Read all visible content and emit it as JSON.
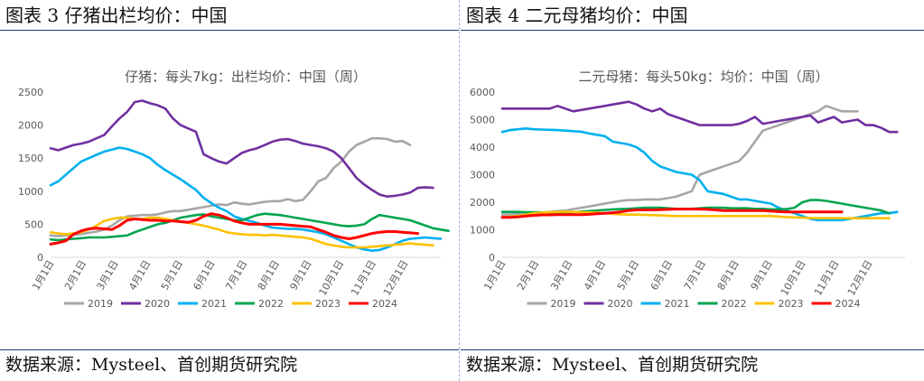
{
  "panels": [
    {
      "figure_title": "图表 3 仔猪出栏均价：中国",
      "source": "数据来源：Mysteel、首创期货研究院",
      "chart_data": {
        "type": "line",
        "title": "仔猪：每头7kg：出栏均价：中国（周）",
        "xlabel": "",
        "ylabel": "",
        "x_ticks": [
          "1月1日",
          "2月1日",
          "3月1日",
          "4月1日",
          "5月1日",
          "6月1日",
          "7月1日",
          "8月1日",
          "9月1日",
          "10月1日",
          "11月1日",
          "12月1日"
        ],
        "ylim": [
          0,
          2500
        ],
        "y_ticks": [
          0,
          500,
          1000,
          1500,
          2000,
          2500
        ],
        "grid": false,
        "legend_position": "bottom",
        "series": [
          {
            "name": "2019",
            "color": "#a6a6a6",
            "values": [
              330,
              320,
              330,
              340,
              350,
              370,
              390,
              420,
              480,
              560,
              620,
              630,
              640,
              640,
              650,
              680,
              700,
              700,
              720,
              740,
              760,
              780,
              800,
              790,
              830,
              810,
              800,
              820,
              840,
              850,
              850,
              880,
              850,
              870,
              1000,
              1150,
              1200,
              1350,
              1450,
              1600,
              1700,
              1750,
              1800,
              1800,
              1790,
              1750,
              1760,
              1700
            ]
          },
          {
            "name": "2020",
            "color": "#7030a0",
            "values": [
              1650,
              1620,
              1660,
              1700,
              1720,
              1750,
              1800,
              1850,
              1980,
              2100,
              2200,
              2350,
              2370,
              2330,
              2300,
              2250,
              2100,
              2000,
              1950,
              1900,
              1560,
              1500,
              1450,
              1420,
              1500,
              1580,
              1620,
              1650,
              1700,
              1750,
              1780,
              1790,
              1760,
              1720,
              1700,
              1680,
              1650,
              1600,
              1500,
              1350,
              1200,
              1100,
              1020,
              950,
              920,
              930,
              950,
              980,
              1050,
              1060,
              1050
            ]
          },
          {
            "name": "2021",
            "color": "#00b0f0",
            "values": [
              1090,
              1150,
              1250,
              1350,
              1450,
              1500,
              1550,
              1600,
              1630,
              1660,
              1640,
              1600,
              1560,
              1500,
              1400,
              1320,
              1250,
              1180,
              1100,
              1020,
              900,
              820,
              750,
              700,
              620,
              580,
              550,
              520,
              480,
              450,
              440,
              430,
              430,
              420,
              400,
              380,
              350,
              300,
              250,
              200,
              150,
              120,
              100,
              110,
              150,
              200,
              250,
              280,
              290,
              300,
              290,
              280
            ]
          },
          {
            "name": "2022",
            "color": "#00a550",
            "values": [
              270,
              260,
              270,
              280,
              290,
              300,
              300,
              300,
              310,
              320,
              330,
              380,
              420,
              460,
              500,
              520,
              560,
              600,
              620,
              640,
              650,
              620,
              600,
              580,
              560,
              560,
              600,
              640,
              660,
              650,
              640,
              620,
              600,
              580,
              560,
              540,
              520,
              500,
              480,
              470,
              480,
              500,
              580,
              640,
              620,
              600,
              580,
              560,
              520,
              480,
              440,
              420,
              400
            ]
          },
          {
            "name": "2023",
            "color": "#ffc000",
            "values": [
              380,
              360,
              350,
              360,
              380,
              420,
              480,
              550,
              580,
              600,
              600,
              580,
              580,
              600,
              600,
              580,
              560,
              540,
              520,
              500,
              480,
              450,
              420,
              380,
              360,
              350,
              340,
              340,
              330,
              340,
              330,
              320,
              310,
              300,
              280,
              240,
              200,
              180,
              160,
              150,
              150,
              150,
              160,
              170,
              180,
              190,
              200,
              210,
              200,
              190,
              180
            ]
          },
          {
            "name": "2024",
            "color": "#ff0000",
            "values": [
              200,
              220,
              250,
              350,
              400,
              430,
              440,
              430,
              420,
              480,
              560,
              580,
              570,
              560,
              560,
              550,
              550,
              540,
              530,
              560,
              620,
              660,
              640,
              600,
              550,
              520,
              500,
              500,
              500,
              500,
              500,
              490,
              480,
              470,
              460,
              420,
              380,
              330,
              300,
              280,
              300,
              330,
              360,
              380,
              390,
              390,
              380,
              370,
              360
            ]
          }
        ]
      }
    },
    {
      "figure_title": "图表 4 二元母猪均价：中国",
      "source": "数据来源：Mysteel、首创期货研究院",
      "chart_data": {
        "type": "line",
        "title": "二元母猪：每头50kg：均价：中国（周）",
        "xlabel": "",
        "ylabel": "",
        "x_ticks": [
          "1月1日",
          "2月1日",
          "3月1日",
          "4月1日",
          "5月1日",
          "6月1日",
          "7月1日",
          "8月1日",
          "9月1日",
          "10月1日",
          "11月1日",
          "12月1日"
        ],
        "ylim": [
          0,
          6000
        ],
        "y_ticks": [
          0,
          1000,
          2000,
          3000,
          4000,
          5000,
          6000
        ],
        "grid": false,
        "legend_position": "bottom",
        "series": [
          {
            "name": "2019",
            "color": "#a6a6a6",
            "values": [
              1550,
              1560,
              1570,
              1580,
              1600,
              1620,
              1650,
              1680,
              1700,
              1750,
              1800,
              1850,
              1900,
              1950,
              2000,
              2050,
              2080,
              2080,
              2100,
              2100,
              2100,
              2150,
              2200,
              2300,
              2400,
              3000,
              3100,
              3200,
              3300,
              3400,
              3500,
              3800,
              4200,
              4600,
              4700,
              4800,
              4900,
              5000,
              5100,
              5200,
              5300,
              5500,
              5400,
              5300,
              5300,
              5300
            ]
          },
          {
            "name": "2020",
            "color": "#7030a0",
            "values": [
              5400,
              5400,
              5400,
              5400,
              5400,
              5400,
              5400,
              5500,
              5400,
              5300,
              5350,
              5400,
              5450,
              5500,
              5550,
              5600,
              5650,
              5550,
              5400,
              5300,
              5400,
              5200,
              5100,
              5000,
              4900,
              4800,
              4800,
              4800,
              4800,
              4800,
              4850,
              4950,
              5100,
              4850,
              4900,
              4950,
              5000,
              5050,
              5100,
              5150,
              4900,
              5000,
              5100,
              4900,
              4950,
              5000,
              4800,
              4800,
              4700,
              4550,
              4550
            ]
          },
          {
            "name": "2021",
            "color": "#00b0f0",
            "values": [
              4550,
              4620,
              4650,
              4680,
              4650,
              4640,
              4630,
              4620,
              4600,
              4580,
              4560,
              4500,
              4450,
              4400,
              4200,
              4150,
              4100,
              4000,
              3800,
              3500,
              3300,
              3200,
              3100,
              3050,
              3000,
              2800,
              2400,
              2350,
              2300,
              2200,
              2100,
              2100,
              2050,
              2000,
              1950,
              1800,
              1700,
              1600,
              1500,
              1400,
              1350,
              1350,
              1350,
              1350,
              1400,
              1450,
              1500,
              1550,
              1600,
              1600,
              1650
            ]
          },
          {
            "name": "2022",
            "color": "#00a550",
            "values": [
              1650,
              1650,
              1650,
              1640,
              1640,
              1630,
              1620,
              1620,
              1620,
              1640,
              1660,
              1680,
              1700,
              1720,
              1740,
              1750,
              1760,
              1780,
              1800,
              1800,
              1800,
              1780,
              1760,
              1760,
              1760,
              1780,
              1800,
              1800,
              1800,
              1780,
              1780,
              1780,
              1760,
              1760,
              1740,
              1740,
              1750,
              1800,
              2000,
              2080,
              2080,
              2050,
              2000,
              1950,
              1900,
              1850,
              1800,
              1750,
              1700,
              1600
            ]
          },
          {
            "name": "2023",
            "color": "#ffc000",
            "values": [
              1450,
              1480,
              1500,
              1550,
              1600,
              1620,
              1640,
              1650,
              1660,
              1650,
              1640,
              1630,
              1620,
              1600,
              1580,
              1560,
              1550,
              1550,
              1540,
              1530,
              1520,
              1510,
              1500,
              1500,
              1500,
              1500,
              1500,
              1500,
              1500,
              1500,
              1500,
              1500,
              1500,
              1500,
              1500,
              1480,
              1460,
              1450,
              1440,
              1430,
              1420,
              1420,
              1420,
              1420,
              1420,
              1420,
              1420,
              1420,
              1420,
              1420
            ]
          },
          {
            "name": "2024",
            "color": "#ff0000",
            "values": [
              1450,
              1450,
              1470,
              1500,
              1520,
              1540,
              1540,
              1550,
              1550,
              1550,
              1550,
              1560,
              1580,
              1600,
              1620,
              1650,
              1700,
              1720,
              1720,
              1720,
              1730,
              1740,
              1750,
              1750,
              1750,
              1750,
              1740,
              1720,
              1700,
              1700,
              1700,
              1700,
              1700,
              1700,
              1680,
              1660,
              1650,
              1650,
              1650,
              1650,
              1650,
              1650,
              1650,
              1650
            ]
          }
        ]
      }
    }
  ]
}
